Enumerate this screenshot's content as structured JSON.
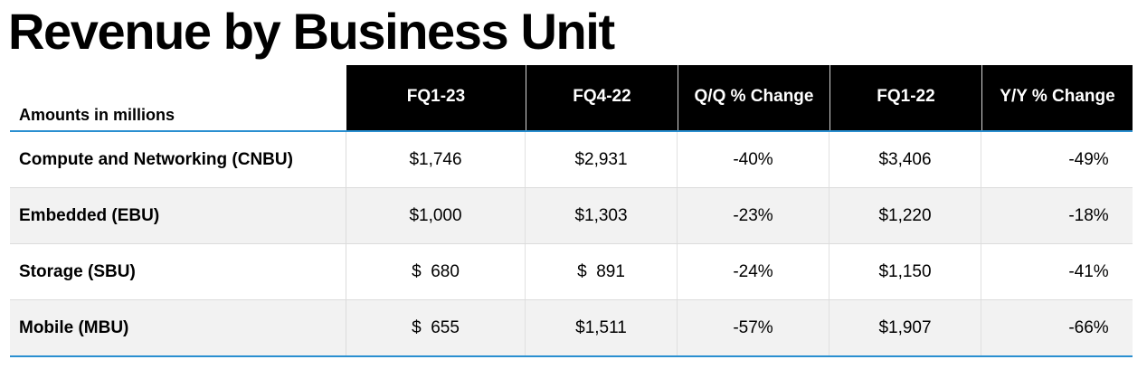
{
  "title": "Revenue by Business Unit",
  "table": {
    "corner_label": "Amounts in millions",
    "columns": [
      "FQ1-23",
      "FQ4-22",
      "Q/Q % Change",
      "FQ1-22",
      "Y/Y % Change"
    ],
    "rows": [
      {
        "label": "Compute and Networking (CNBU)",
        "values": [
          "$1,746",
          "$2,931",
          "-40%",
          "$3,406",
          "-49%"
        ]
      },
      {
        "label": "Embedded (EBU)",
        "values": [
          "$1,000",
          "$1,303",
          "-23%",
          "$1,220",
          "-18%"
        ]
      },
      {
        "label": "Storage (SBU)",
        "values": [
          "$  680",
          "$  891",
          "-24%",
          "$1,150",
          "-41%"
        ]
      },
      {
        "label": "Mobile (MBU)",
        "values": [
          "$  655",
          "$1,511",
          "-57%",
          "$1,907",
          "-66%"
        ]
      }
    ]
  },
  "colors": {
    "header_background": "#000000",
    "header_text": "#ffffff",
    "rule": "#2a8fd0",
    "shaded_row": "#f2f2f2"
  }
}
